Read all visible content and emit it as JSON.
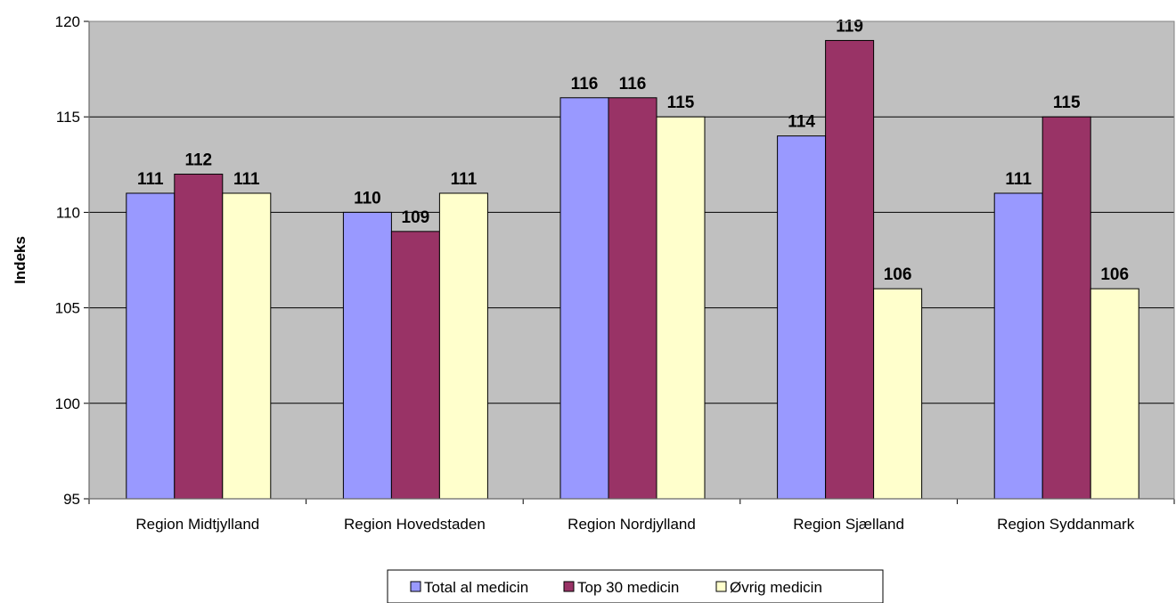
{
  "chart_data": {
    "type": "bar",
    "ylabel": "Indeks",
    "ylim": [
      95,
      120
    ],
    "y_ticks": [
      95,
      100,
      105,
      110,
      115,
      120
    ],
    "grid": true,
    "legend_position": "bottom",
    "plot_background": "#C0C0C0",
    "categories": [
      "Region Midtjylland",
      "Region Hovedstaden",
      "Region Nordjylland",
      "Region Sjælland",
      "Region Syddanmark"
    ],
    "series": [
      {
        "name": "Total al medicin",
        "color": "#9999FF",
        "values": [
          111,
          110,
          116,
          114,
          111
        ]
      },
      {
        "name": "Top 30 medicin",
        "color": "#993366",
        "values": [
          112,
          109,
          116,
          119,
          115
        ]
      },
      {
        "name": "Øvrig medicin",
        "color": "#FFFFCC",
        "values": [
          111,
          111,
          115,
          106,
          106
        ]
      }
    ]
  }
}
